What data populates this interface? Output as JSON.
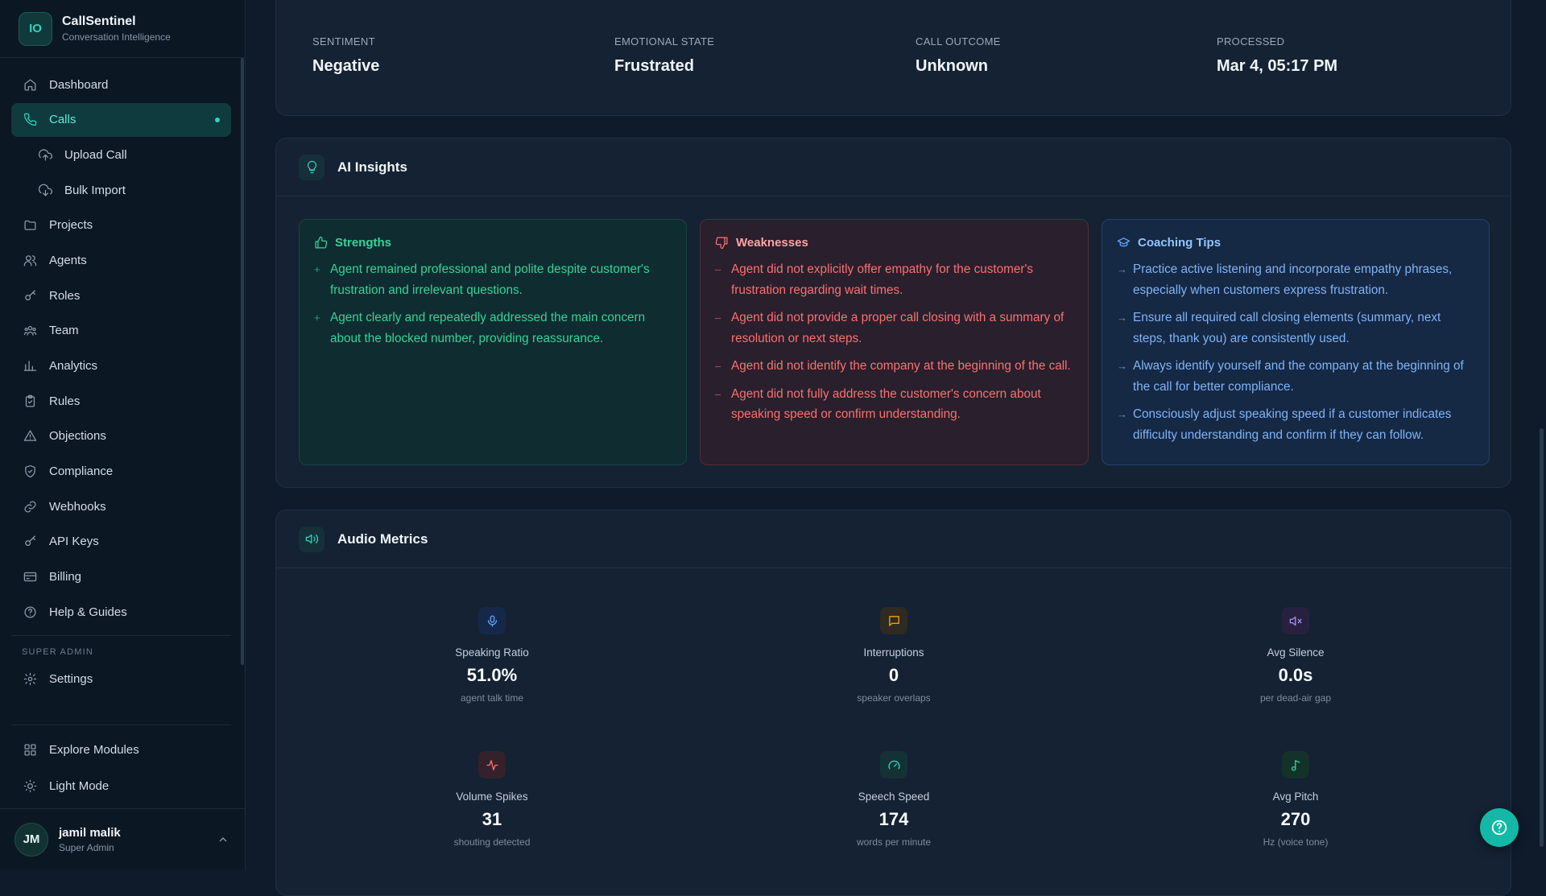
{
  "brand": {
    "logo": "IO",
    "name": "CallSentinel",
    "tagline": "Conversation Intelligence"
  },
  "sidebar": {
    "items": [
      {
        "label": "Dashboard",
        "icon": "home-icon"
      },
      {
        "label": "Calls",
        "icon": "phone-icon",
        "active": true
      },
      {
        "label": "Upload Call",
        "icon": "cloud-upload-icon",
        "sub": true
      },
      {
        "label": "Bulk Import",
        "icon": "cloud-download-icon",
        "sub": true
      },
      {
        "label": "Projects",
        "icon": "folder-icon"
      },
      {
        "label": "Agents",
        "icon": "users-icon"
      },
      {
        "label": "Roles",
        "icon": "key-icon"
      },
      {
        "label": "Team",
        "icon": "team-icon"
      },
      {
        "label": "Analytics",
        "icon": "bar-chart-icon"
      },
      {
        "label": "Rules",
        "icon": "clipboard-icon"
      },
      {
        "label": "Objections",
        "icon": "warning-icon"
      },
      {
        "label": "Compliance",
        "icon": "shield-icon"
      },
      {
        "label": "Webhooks",
        "icon": "link-icon"
      },
      {
        "label": "API Keys",
        "icon": "key-icon"
      },
      {
        "label": "Billing",
        "icon": "credit-card-icon"
      },
      {
        "label": "Help & Guides",
        "icon": "help-circle-icon"
      }
    ],
    "section_label": "SUPER ADMIN",
    "settings_label": "Settings",
    "bottom": [
      {
        "label": "Explore Modules",
        "icon": "grid-icon"
      },
      {
        "label": "Light Mode",
        "icon": "sun-icon"
      }
    ],
    "user": {
      "initials": "JM",
      "name": "jamil malik",
      "role": "Super Admin"
    }
  },
  "summary": [
    {
      "label": "SENTIMENT",
      "value": "Negative"
    },
    {
      "label": "EMOTIONAL STATE",
      "value": "Frustrated"
    },
    {
      "label": "CALL OUTCOME",
      "value": "Unknown"
    },
    {
      "label": "PROCESSED",
      "value": "Mar 4, 05:17 PM"
    }
  ],
  "insights": {
    "title": "AI Insights",
    "strengths": {
      "title": "Strengths",
      "items": [
        "Agent remained professional and polite despite customer's frustration and irrelevant questions.",
        "Agent clearly and repeatedly addressed the main concern about the blocked number, providing reassurance."
      ]
    },
    "weaknesses": {
      "title": "Weaknesses",
      "items": [
        "Agent did not explicitly offer empathy for the customer's frustration regarding wait times.",
        "Agent did not provide a proper call closing with a summary of resolution or next steps.",
        "Agent did not identify the company at the beginning of the call.",
        "Agent did not fully address the customer's concern about speaking speed or confirm understanding."
      ]
    },
    "coaching": {
      "title": "Coaching Tips",
      "items": [
        "Practice active listening and incorporate empathy phrases, especially when customers express frustration.",
        "Ensure all required call closing elements (summary, next steps, thank you) are consistently used.",
        "Always identify yourself and the company at the beginning of the call for better compliance.",
        "Consciously adjust speaking speed if a customer indicates difficulty understanding and confirm if they can follow."
      ]
    }
  },
  "audio": {
    "title": "Audio Metrics",
    "metrics": [
      {
        "label": "Speaking Ratio",
        "value": "51.0%",
        "sub": "agent talk time",
        "icon": "microphone-icon",
        "color": "#60a5fa",
        "bg": "#16284a"
      },
      {
        "label": "Interruptions",
        "value": "0",
        "sub": "speaker overlaps",
        "icon": "message-square-icon",
        "color": "#f59e0b",
        "bg": "#2f2a22"
      },
      {
        "label": "Avg Silence",
        "value": "0.0s",
        "sub": "per dead-air gap",
        "icon": "volume-mute-icon",
        "color": "#a78bfa",
        "bg": "#27213f"
      },
      {
        "label": "Volume Spikes",
        "value": "31",
        "sub": "shouting detected",
        "icon": "activity-icon",
        "color": "#f87171",
        "bg": "#35212b"
      },
      {
        "label": "Speech Speed",
        "value": "174",
        "sub": "words per minute",
        "icon": "gauge-icon",
        "color": "#2dd4bf",
        "bg": "#143235"
      },
      {
        "label": "Avg Pitch",
        "value": "270",
        "sub": "Hz (voice tone)",
        "icon": "music-note-icon",
        "color": "#34d399",
        "bg": "#133229"
      }
    ]
  }
}
